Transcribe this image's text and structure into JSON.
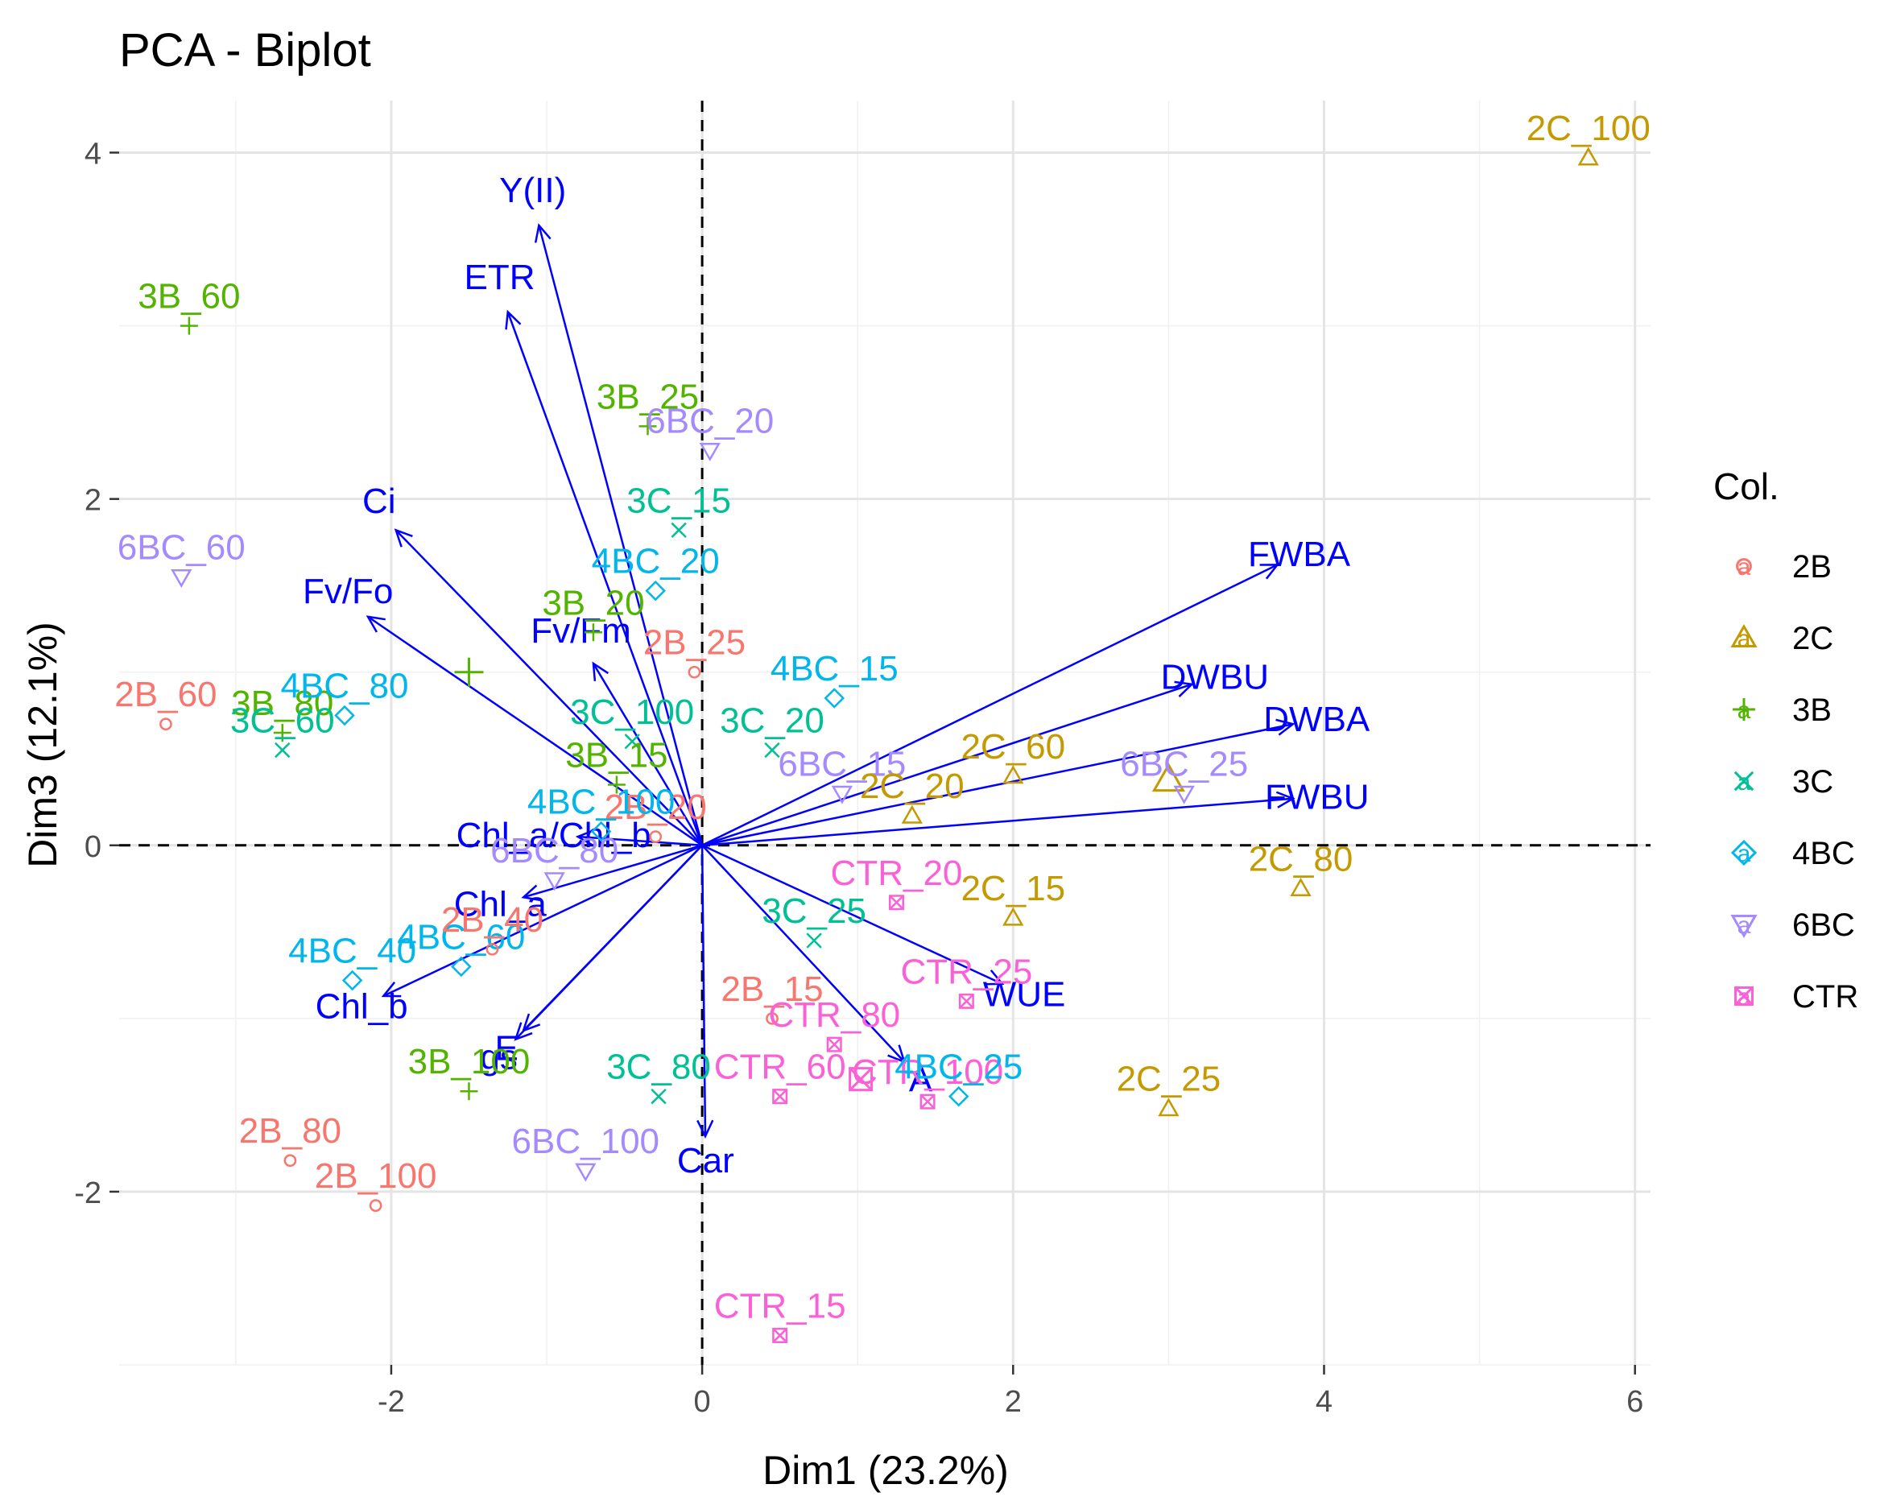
{
  "chart_data": {
    "type": "scatter",
    "title": "PCA - Biplot",
    "xlabel": "Dim1 (23.2%)",
    "ylabel": "Dim3 (12.1%)",
    "xlim": [
      -3.75,
      6.1
    ],
    "ylim": [
      -3.0,
      4.3
    ],
    "xticks": [
      -2,
      0,
      2,
      4,
      6
    ],
    "yticks": [
      -2,
      0,
      2,
      4
    ],
    "xtick_labels": [
      "-2",
      "0",
      "2",
      "4",
      "6"
    ],
    "ytick_labels": [
      "-2",
      "0",
      "2",
      "4"
    ],
    "grid": true,
    "legend": {
      "title": "Col.",
      "position": "right",
      "sample_glyph": "a",
      "entries": [
        {
          "name": "2B",
          "color": "#F8766D",
          "shape": "circle"
        },
        {
          "name": "2C",
          "color": "#C49A00",
          "shape": "triangle-up"
        },
        {
          "name": "3B",
          "color": "#53B400",
          "shape": "plus"
        },
        {
          "name": "3C",
          "color": "#00C094",
          "shape": "cross"
        },
        {
          "name": "4BC",
          "color": "#00B6EB",
          "shape": "diamond"
        },
        {
          "name": "6BC",
          "color": "#A58AFF",
          "shape": "triangle-down"
        },
        {
          "name": "CTR",
          "color": "#FB61D7",
          "shape": "square-cross"
        }
      ]
    },
    "points": [
      {
        "label": "2C_100",
        "group": "2C",
        "x": 5.7,
        "y": 3.97
      },
      {
        "label": "3B_60",
        "group": "3B",
        "x": -3.3,
        "y": 3.0
      },
      {
        "label": "3B_25",
        "group": "3B",
        "x": -0.35,
        "y": 2.42
      },
      {
        "label": "6BC_20",
        "group": "6BC",
        "x": 0.05,
        "y": 2.28
      },
      {
        "label": "3C_15",
        "group": "3C",
        "x": -0.15,
        "y": 1.82
      },
      {
        "label": "4BC_20",
        "group": "4BC",
        "x": -0.3,
        "y": 1.47
      },
      {
        "label": "6BC_60",
        "group": "6BC",
        "x": -3.35,
        "y": 1.55
      },
      {
        "label": "3B_20",
        "group": "3B",
        "x": -0.7,
        "y": 1.23
      },
      {
        "label": "3B_80",
        "group": "3B",
        "x": -2.7,
        "y": 0.65
      },
      {
        "label": "2B_25",
        "group": "2B",
        "x": -0.05,
        "y": 1.0
      },
      {
        "label": "4BC_15",
        "group": "4BC",
        "x": 0.85,
        "y": 0.85
      },
      {
        "label": "2B_60",
        "group": "2B",
        "x": -3.45,
        "y": 0.7
      },
      {
        "label": "4BC_80",
        "group": "4BC",
        "x": -2.3,
        "y": 0.75
      },
      {
        "label": "3C_60",
        "group": "3C",
        "x": -2.7,
        "y": 0.55
      },
      {
        "label": "3C_100",
        "group": "3C",
        "x": -0.45,
        "y": 0.6
      },
      {
        "label": "3C_20",
        "group": "3C",
        "x": 0.45,
        "y": 0.55
      },
      {
        "label": "3B_15",
        "group": "3B",
        "x": -0.55,
        "y": 0.35
      },
      {
        "label": "6BC_15",
        "group": "6BC",
        "x": 0.9,
        "y": 0.3
      },
      {
        "label": "2C_60",
        "group": "2C",
        "x": 2.0,
        "y": 0.4
      },
      {
        "label": "2C_20",
        "group": "2C",
        "x": 1.35,
        "y": 0.17
      },
      {
        "label": "6BC_25",
        "group": "6BC",
        "x": 3.1,
        "y": 0.3
      },
      {
        "label": "2B_20",
        "group": "2B",
        "x": -0.3,
        "y": 0.05
      },
      {
        "label": "4BC_100",
        "group": "4BC",
        "x": -0.65,
        "y": 0.08
      },
      {
        "label": "6BC_80",
        "group": "6BC",
        "x": -0.95,
        "y": -0.2
      },
      {
        "label": "2C_80",
        "group": "2C",
        "x": 3.85,
        "y": -0.25
      },
      {
        "label": "CTR_20",
        "group": "CTR",
        "x": 1.25,
        "y": -0.33
      },
      {
        "label": "2C_15",
        "group": "2C",
        "x": 2.0,
        "y": -0.42
      },
      {
        "label": "3C_25",
        "group": "3C",
        "x": 0.72,
        "y": -0.55
      },
      {
        "label": "4BC_60",
        "group": "4BC",
        "x": -1.55,
        "y": -0.7
      },
      {
        "label": "2B_40",
        "group": "2B",
        "x": -1.35,
        "y": -0.6
      },
      {
        "label": "4BC_40",
        "group": "4BC",
        "x": -2.25,
        "y": -0.78
      },
      {
        "label": "CTR_25",
        "group": "CTR",
        "x": 1.7,
        "y": -0.9
      },
      {
        "label": "2B_15",
        "group": "2B",
        "x": 0.45,
        "y": -1.0
      },
      {
        "label": "CTR_80",
        "group": "CTR",
        "x": 0.85,
        "y": -1.15
      },
      {
        "label": "CTR_60",
        "group": "CTR",
        "x": 0.5,
        "y": -1.45
      },
      {
        "label": "CTR_100",
        "group": "CTR",
        "x": 1.45,
        "y": -1.48
      },
      {
        "label": "4BC_25",
        "group": "4BC",
        "x": 1.65,
        "y": -1.45
      },
      {
        "label": "3C_80",
        "group": "3C",
        "x": -0.28,
        "y": -1.45
      },
      {
        "label": "3B_100",
        "group": "3B",
        "x": -1.5,
        "y": -1.42
      },
      {
        "label": "2C_25",
        "group": "2C",
        "x": 3.0,
        "y": -1.52
      },
      {
        "label": "6BC_100",
        "group": "6BC",
        "x": -0.75,
        "y": -1.88
      },
      {
        "label": "2B_80",
        "group": "2B",
        "x": -2.65,
        "y": -1.82
      },
      {
        "label": "2B_100",
        "group": "2B",
        "x": -2.1,
        "y": -2.08
      },
      {
        "label": "CTR_15",
        "group": "CTR",
        "x": 0.5,
        "y": -2.83
      }
    ],
    "group_centroids": [
      {
        "group": "2C",
        "x": 3.0,
        "y": 0.38
      },
      {
        "group": "3B",
        "x": -1.5,
        "y": 1.0
      },
      {
        "group": "CTR",
        "x": 1.02,
        "y": -1.35
      }
    ],
    "variables": [
      {
        "name": "Y(II)",
        "x": -1.05,
        "y": 3.58
      },
      {
        "name": "ETR",
        "x": -1.25,
        "y": 3.08
      },
      {
        "name": "Ci",
        "x": -1.97,
        "y": 1.82
      },
      {
        "name": "Fv/Fo",
        "x": -2.15,
        "y": 1.32
      },
      {
        "name": "Fv/Fm",
        "x": -0.7,
        "y": 1.05
      },
      {
        "name": "Chl_a/Chl_b",
        "x": -0.8,
        "y": 0.05
      },
      {
        "name": "Chl_a",
        "x": -1.15,
        "y": -0.3
      },
      {
        "name": "Chl_b",
        "x": -2.05,
        "y": -0.87
      },
      {
        "name": "gs",
        "x": -1.2,
        "y": -1.12
      },
      {
        "name": "E",
        "x": -1.15,
        "y": -1.07
      },
      {
        "name": "Car",
        "x": 0.02,
        "y": -1.68
      },
      {
        "name": "A",
        "x": 1.3,
        "y": -1.25
      },
      {
        "name": "WUE",
        "x": 1.93,
        "y": -0.8
      },
      {
        "name": "FWBA",
        "x": 3.7,
        "y": 1.62
      },
      {
        "name": "DWBU",
        "x": 3.15,
        "y": 0.93
      },
      {
        "name": "DWBA",
        "x": 3.8,
        "y": 0.7
      },
      {
        "name": "FWBU",
        "x": 3.8,
        "y": 0.27
      }
    ]
  }
}
